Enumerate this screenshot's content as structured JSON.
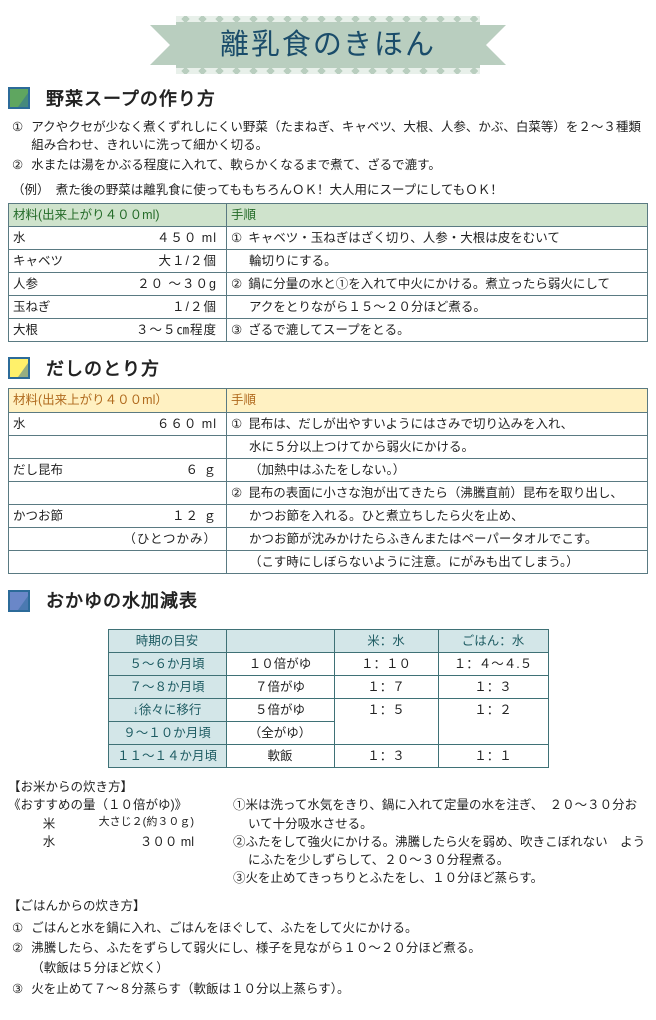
{
  "title": "離乳食のきほん",
  "colors": {
    "bannerBg": "#b9cebf",
    "bannerText": "#1a4c6a",
    "border": "#5a7a82"
  },
  "sec1": {
    "title": "野菜スープの作り方",
    "steps": [
      {
        "n": "①",
        "t": "アクやクセが少なく煮くずれしにくい野菜（たまねぎ、キャベツ、大根、人参、かぶ、白菜等）を２～３種類組み合わせ、きれいに洗って細かく切る。"
      },
      {
        "n": "②",
        "t": "水または湯をかぶる程度に入れて、軟らかくなるまで煮て、ざるで漉す。"
      }
    ],
    "note": "（例）　煮た後の野菜は離乳食に使ってももちろんＯＫ！大人用にスープにしてもＯＫ！",
    "tableHeaders": {
      "ing": "材料(出来上がり４００ml)",
      "proc": "手順"
    },
    "ingredients": [
      {
        "name": "水",
        "amt": "４５０ ml"
      },
      {
        "name": "キャベツ",
        "amt": "大１/２個"
      },
      {
        "name": "人参",
        "amt": "２０ ～３０g"
      },
      {
        "name": "玉ねぎ",
        "amt": "１/２個"
      },
      {
        "name": "大根",
        "amt": "３～５㎝程度"
      }
    ],
    "procRows": [
      [
        "①",
        "キャベツ・玉ねぎはざく切り、人参・大根は皮をむいて",
        "輪切りにする。"
      ],
      [
        "②",
        "鍋に分量の水と①を入れて中火にかける。煮立ったら弱火にして",
        "アクをとりながら１５～２０分ほど煮る。"
      ],
      [
        "③",
        "ざるで漉してスープをとる。"
      ]
    ]
  },
  "sec2": {
    "title": "だしのとり方",
    "tableHeaders": {
      "ing": "材料(出来上がり４００ml）",
      "proc": "手順"
    },
    "ingredients": [
      {
        "name": "水",
        "amt": "６６０ ml"
      },
      {
        "name": "",
        "amt": ""
      },
      {
        "name": "だし昆布",
        "amt": "６ ｇ"
      },
      {
        "name": "",
        "amt": ""
      },
      {
        "name": "かつお節",
        "amt": "１２ ｇ"
      },
      {
        "name": "",
        "amt": "（ひとつかみ）"
      }
    ],
    "procLines": [
      {
        "n": "①",
        "t": "昆布は、だしが出やすいようにはさみで切り込みを入れ、"
      },
      {
        "n": "",
        "t": "水に５分以上つけてから弱火にかける。"
      },
      {
        "n": "",
        "t": "（加熱中はふたをしない。）"
      },
      {
        "n": "②",
        "t": "昆布の表面に小さな泡が出てきたら（沸騰直前）昆布を取り出し、"
      },
      {
        "n": "",
        "t": "かつお節を入れる。ひと煮立ちしたら火を止め、"
      },
      {
        "n": "",
        "t": "かつお節が沈みかけたらふきんまたはペーパータオルでこす。"
      },
      {
        "n": "",
        "t": "（こす時にしぼらないように注意。にがみも出てしまう。）"
      }
    ]
  },
  "sec3": {
    "title": "おかゆの水加減表",
    "headers": [
      "時期の目安",
      "",
      "米：水",
      "ごはん：水"
    ],
    "rows": [
      [
        "５～６か月頃",
        "１０倍がゆ",
        "１：１０",
        "１：４～４.５"
      ],
      [
        "７～８か月頃",
        "７倍がゆ",
        "１：７",
        "１：３"
      ],
      [
        "↓徐々に移行",
        "５倍がゆ",
        "１：５(rs)",
        "１：２(rs)"
      ],
      [
        "９～１０か月頃",
        "（全がゆ）",
        "",
        ""
      ],
      [
        "１１～１４か月頃",
        "軟飯",
        "１：３",
        "１：１"
      ]
    ],
    "riceMethodTitle": "【お米からの炊き方】",
    "riceRecTitle": "《おすすめの量（１０倍がゆ)》",
    "riceRec": [
      {
        "n": "米",
        "v": "大さじ２(約３０ｇ)"
      },
      {
        "n": "水",
        "v": "３００ ml"
      }
    ],
    "riceSteps": [
      "①米は洗って水気をきり、鍋に入れて定量の水を注ぎ、　２０～３０分おいて十分吸水させる。",
      "②ふたをして強火にかける。沸騰したら火を弱め、吹きこぼれない　ようにふたを少しずらして、２０～３０分程煮る。",
      "③火を止めてきっちりとふたをし、１０分ほど蒸らす。"
    ],
    "gohanMethodTitle": "【ごはんからの炊き方】",
    "gohanSteps": [
      {
        "n": "①",
        "t": "ごはんと水を鍋に入れ、ごはんをほぐして、ふたをして火にかける。"
      },
      {
        "n": "②",
        "t": "沸騰したら、ふたをずらして弱火にし、様子を見ながら１０～２０分ほど煮る。"
      },
      {
        "n": "",
        "t": "（軟飯は５分ほど炊く）"
      },
      {
        "n": "③",
        "t": "火を止めて７～８分蒸らす（軟飯は１０分以上蒸らす）。"
      }
    ]
  }
}
